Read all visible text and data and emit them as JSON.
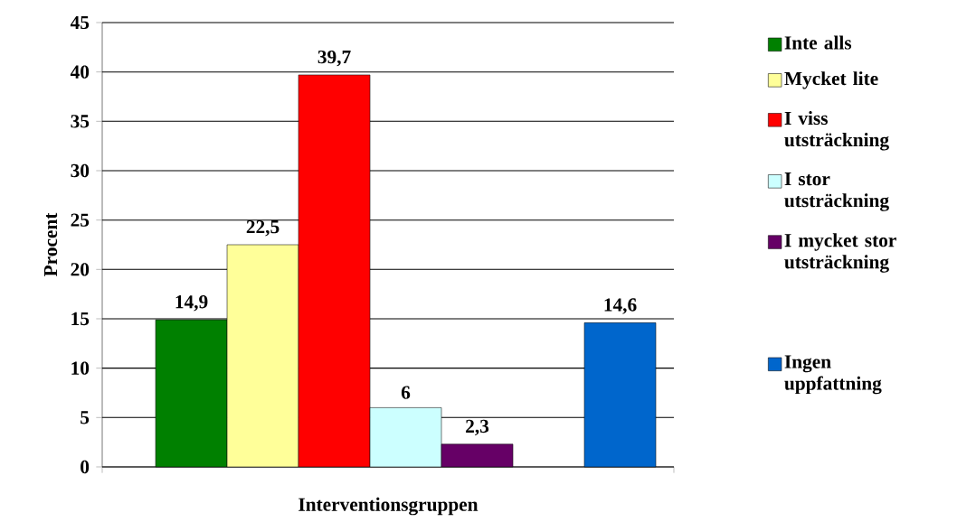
{
  "chart_data": {
    "type": "bar",
    "xlabel": "Interventionsgruppen",
    "ylabel": "Procent",
    "categories": [
      null
    ],
    "ylim": [
      0,
      45
    ],
    "yticks": [
      0,
      5,
      10,
      15,
      20,
      25,
      30,
      35,
      40,
      45
    ],
    "grid": "y",
    "legend": "right",
    "series": [
      {
        "name": "Inte alls",
        "color": "#008000",
        "values": [
          14.9
        ],
        "value_labels": [
          "14,9"
        ]
      },
      {
        "name": "Mycket lite",
        "color": "#ffff99",
        "values": [
          22.5
        ],
        "value_labels": [
          "22,5"
        ]
      },
      {
        "name": "I viss utsträckning",
        "color": "#ff0000",
        "values": [
          39.7
        ],
        "value_labels": [
          "39,7"
        ]
      },
      {
        "name": "I stor utsträckning",
        "color": "#ccffff",
        "values": [
          6
        ],
        "value_labels": [
          "6"
        ]
      },
      {
        "name": "I mycket stor utsträckning",
        "color": "#660066",
        "values": [
          2.3
        ],
        "value_labels": [
          "2,3"
        ]
      },
      {
        "values": [
          null
        ]
      },
      {
        "name": "Ingen uppfattning",
        "color": "#0066cc",
        "values": [
          14.6
        ],
        "value_labels": [
          "14,6"
        ]
      }
    ]
  }
}
